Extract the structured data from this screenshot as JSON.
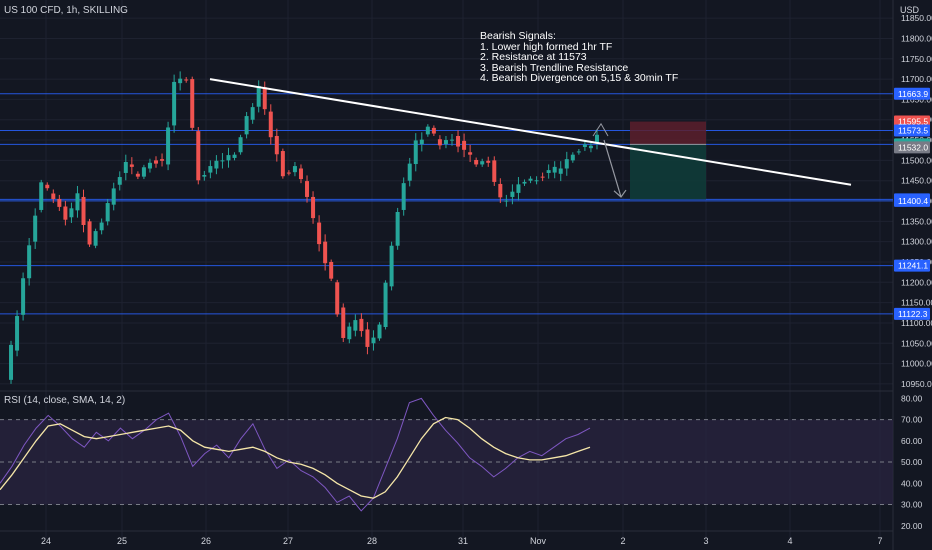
{
  "header": {
    "title": "US 100 CFD, 1h, SKILLING",
    "currency": "USD"
  },
  "annotation": {
    "lines": [
      "Bearish Signals:",
      "1. Lower high formed 1hr TF",
      "2. Resistance at 11573",
      "3. Bearish Trendline Resistance",
      "4. Bearish Divergence on 5,15 & 30min TF"
    ]
  },
  "colors": {
    "background": "#131722",
    "grid": "#1e2230",
    "up_candle": "#26a69a",
    "down_candle": "#ef5350",
    "level_line": "#2962ff",
    "trendline": "#ffffff",
    "rsi_line": "#7e57c2",
    "rsi_sma": "#f5e6a8",
    "rsi_band": "#2a2440",
    "stop_zone": "#5c1f2b",
    "target_zone": "#0f3b38",
    "text": "#d1d4dc"
  },
  "chart_data": [
    {
      "type": "candlestick",
      "title": "US 100 CFD, 1h, SKILLING",
      "x_ticks": [
        "24",
        "25",
        "26",
        "27",
        "28",
        "31",
        "Nov",
        "2",
        "3",
        "4",
        "7"
      ],
      "y_ticks": [
        10950,
        11000,
        11050,
        11100,
        11150,
        11200,
        11250,
        11300,
        11350,
        11400,
        11450,
        11500,
        11550,
        11600,
        11650,
        11700,
        11750,
        11800,
        11850
      ],
      "ylim": [
        10935,
        11870
      ],
      "y_unit": "USD",
      "horizontal_levels": [
        11663.9,
        11573.5,
        11539.4,
        11403.9,
        11400.4,
        11241.1,
        11122.3
      ],
      "price_labels": [
        {
          "text": "11663.9",
          "value": 11663.9,
          "color": "#2962ff"
        },
        {
          "text": "11595.5",
          "value": 11595.5,
          "color": "#ef5350"
        },
        {
          "text": "11573.5",
          "value": 11573.5,
          "color": "#2962ff"
        },
        {
          "text": "11539.4",
          "value": 11539.4,
          "color": "#26a69a"
        },
        {
          "text": "11532.0",
          "value": 11532.0,
          "color": "#787b86"
        },
        {
          "text": "11403.9",
          "value": 11403.9,
          "color": "#2962ff"
        },
        {
          "text": "11400.4",
          "value": 11400.4,
          "color": "#2962ff"
        },
        {
          "text": "11241.1",
          "value": 11241.1,
          "color": "#2962ff"
        },
        {
          "text": "11122.3",
          "value": 11122.3,
          "color": "#2962ff"
        }
      ],
      "trendline": {
        "from": {
          "x": "26",
          "y": 11700
        },
        "to": {
          "x": "4",
          "y": 11440
        }
      },
      "position": {
        "direction": "short",
        "entry": 11539.4,
        "stop": 11595.5,
        "target": 11403.9
      },
      "price_path": [
        10960,
        11120,
        11300,
        11440,
        11405,
        11360,
        11410,
        11290,
        11350,
        11440,
        11490,
        11460,
        11500,
        11490,
        11690,
        11700,
        11460,
        11480,
        11500,
        11520,
        11600,
        11680,
        11560,
        11470,
        11480,
        11410,
        11300,
        11200,
        11060,
        11110,
        11050,
        11090,
        11290,
        11450,
        11540,
        11580,
        11540,
        11560,
        11520,
        11490,
        11500,
        11400,
        11420,
        11450,
        11460,
        11470,
        11480,
        11520,
        11530,
        11560
      ]
    },
    {
      "type": "line",
      "title": "RSI (14, close, SMA, 14, 2)",
      "y_ticks": [
        20,
        30,
        40,
        50,
        60,
        70,
        80
      ],
      "ylim": [
        18,
        83
      ],
      "bands": [
        30,
        50,
        70
      ],
      "series": [
        {
          "name": "RSI",
          "values": [
            40,
            48,
            58,
            66,
            72,
            67,
            61,
            57,
            64,
            60,
            66,
            61,
            65,
            70,
            73,
            62,
            48,
            54,
            58,
            52,
            61,
            68,
            56,
            47,
            51,
            46,
            43,
            38,
            31,
            34,
            27,
            33,
            47,
            61,
            78,
            80,
            72,
            65,
            59,
            52,
            48,
            43,
            47,
            52,
            55,
            53,
            57,
            61,
            63,
            66
          ]
        },
        {
          "name": "SMA",
          "values": [
            37,
            44,
            52,
            60,
            67,
            68,
            65,
            62,
            61,
            62,
            63,
            64,
            65,
            66,
            67,
            65,
            60,
            57,
            56,
            55,
            56,
            57,
            55,
            52,
            50,
            49,
            47,
            44,
            40,
            37,
            34,
            33,
            36,
            43,
            52,
            61,
            68,
            71,
            70,
            66,
            61,
            57,
            54,
            52,
            51,
            51,
            52,
            53,
            55,
            57
          ]
        }
      ]
    }
  ]
}
